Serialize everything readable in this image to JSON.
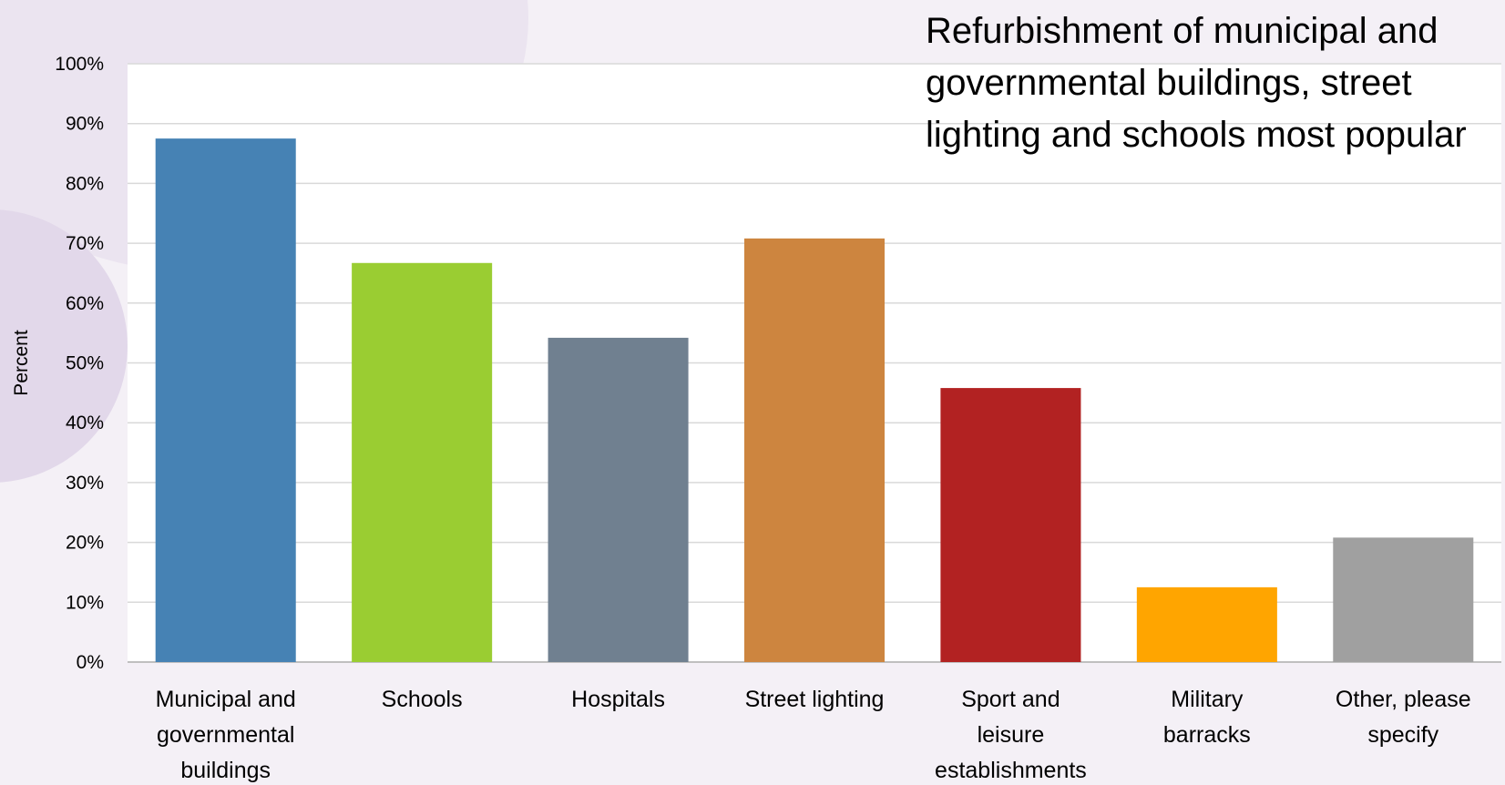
{
  "annotation": "Refurbishment of municipal and governmental buildings, street lighting and schools most popular",
  "chart_data": {
    "type": "bar",
    "title": "",
    "xlabel": "",
    "ylabel": "Percent",
    "ylim": [
      0,
      100
    ],
    "yticks": [
      "0%",
      "10%",
      "20%",
      "30%",
      "40%",
      "50%",
      "60%",
      "70%",
      "80%",
      "90%",
      "100%"
    ],
    "grid": true,
    "legend": "none",
    "categories": [
      "Municipal and governmental buildings",
      "Schools",
      "Hospitals",
      "Street lighting",
      "Sport and leisure establishments",
      "Military barracks",
      "Other, please specify"
    ],
    "category_lines": [
      [
        "Municipal and",
        "governmental",
        "buildings"
      ],
      [
        "Schools"
      ],
      [
        "Hospitals"
      ],
      [
        "Street lighting"
      ],
      [
        "Sport and",
        "leisure",
        "establishments"
      ],
      [
        "Military",
        "barracks"
      ],
      [
        "Other, please",
        "specify"
      ]
    ],
    "values": [
      87.5,
      66.7,
      54.2,
      70.8,
      45.8,
      12.5,
      20.8
    ],
    "colors": [
      "#4682b4",
      "#9acd32",
      "#708090",
      "#cd853f",
      "#b22222",
      "#ffa500",
      "#a0a0a0"
    ]
  }
}
